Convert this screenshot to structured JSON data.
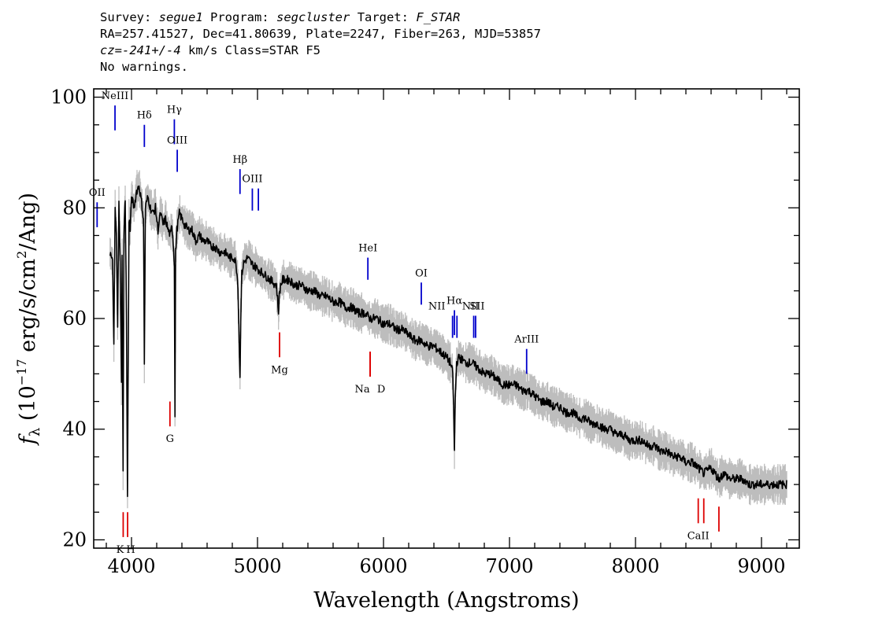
{
  "header": {
    "survey_label": "Survey:",
    "survey": "segue1",
    "program_label": "Program:",
    "program": "segcluster",
    "target_label": "Target:",
    "target": "F_STAR",
    "line2": "RA=257.41527, Dec=41.80639, Plate=2247, Fiber=263, MJD=53857",
    "cz_label": "cz=",
    "cz_value": "-241+/-4",
    "cz_units": "km/s",
    "class_text": "Class=STAR F5",
    "warnings": "No warnings."
  },
  "chart_data": {
    "type": "line",
    "title": "",
    "xlabel": "Wavelength (Angstroms)",
    "ylabel": "fλ (10⁻¹⁷ erg/s/cm²/Ang)",
    "xlim": [
      3700,
      9300
    ],
    "ylim": [
      18.5,
      101.5
    ],
    "x_ticks": [
      4000,
      5000,
      6000,
      7000,
      8000,
      9000
    ],
    "y_ticks": [
      20,
      40,
      60,
      80,
      100
    ],
    "grid": false,
    "series": [
      {
        "role": "flux",
        "color": "#000000",
        "x": [
          3830,
          3850,
          3860,
          3870,
          3880,
          3890,
          3900,
          3910,
          3920,
          3925,
          3933,
          3940,
          3950,
          3960,
          3968,
          3980,
          3990,
          4000,
          4020,
          4040,
          4060,
          4080,
          4095,
          4102,
          4110,
          4130,
          4150,
          4170,
          4190,
          4210,
          4230,
          4250,
          4270,
          4290,
          4310,
          4320,
          4330,
          4340,
          4345,
          4350,
          4360,
          4380,
          4400,
          4420,
          4450,
          4480,
          4510,
          4540,
          4570,
          4600,
          4630,
          4660,
          4700,
          4740,
          4780,
          4810,
          4830,
          4845,
          4855,
          4861,
          4867,
          4875,
          4890,
          4920,
          4950,
          5000,
          5050,
          5100,
          5150,
          5167,
          5172,
          5183,
          5200,
          5250,
          5300,
          5350,
          5400,
          5450,
          5500,
          5550,
          5600,
          5650,
          5700,
          5750,
          5800,
          5850,
          5893,
          5950,
          6000,
          6050,
          6100,
          6150,
          6200,
          6250,
          6300,
          6350,
          6400,
          6450,
          6500,
          6530,
          6550,
          6556,
          6563,
          6570,
          6580,
          6600,
          6650,
          6700,
          6750,
          6800,
          6850,
          6900,
          6950,
          7000,
          7050,
          7100,
          7150,
          7200,
          7250,
          7300,
          7350,
          7400,
          7450,
          7500,
          7550,
          7600,
          7650,
          7700,
          7750,
          7800,
          7850,
          7900,
          7950,
          8000,
          8050,
          8100,
          8150,
          8200,
          8250,
          8300,
          8350,
          8400,
          8450,
          8498,
          8542,
          8600,
          8662,
          8700,
          8750,
          8800,
          8850,
          8900,
          8950,
          9000,
          9050,
          9100,
          9150,
          9200
        ],
        "y": [
          72,
          70,
          55,
          80,
          75,
          58,
          82,
          70,
          48,
          72,
          32,
          75,
          82,
          60,
          28,
          78,
          76,
          82,
          80,
          83,
          84,
          81,
          78,
          52,
          80,
          82,
          80,
          79,
          80,
          76,
          79,
          77,
          78,
          76,
          75,
          77,
          74,
          70,
          42,
          72,
          76,
          79,
          78,
          77,
          76,
          76,
          74,
          75,
          74,
          74,
          73,
          73,
          72,
          72,
          71,
          71,
          70,
          66,
          55,
          49,
          60,
          68,
          70,
          71,
          70,
          69,
          68,
          67,
          66,
          61,
          64,
          66,
          67,
          67,
          66,
          66,
          65,
          65,
          64,
          64,
          63,
          63,
          62,
          62,
          61,
          61,
          60,
          60,
          59,
          59,
          58,
          58,
          57,
          56,
          56,
          55,
          55,
          54,
          53,
          52,
          50,
          44,
          36,
          46,
          52,
          53,
          52,
          52,
          51,
          50,
          50,
          49,
          48,
          48,
          48,
          47,
          47,
          46,
          45,
          45,
          44,
          44,
          43,
          43,
          42,
          42,
          41,
          41,
          40,
          40,
          39,
          39,
          38,
          38,
          38,
          37,
          37,
          36,
          36,
          35,
          35,
          34,
          34,
          33,
          32,
          33,
          31,
          32,
          31,
          31,
          31,
          30,
          30,
          30,
          30,
          30,
          30,
          30
        ]
      },
      {
        "role": "error-band",
        "color": "#bdbdbd",
        "spread": 2.5
      }
    ],
    "emission_lines": [
      {
        "label": "NeIII",
        "wl": 3869,
        "bottom": 94,
        "top": 98.5,
        "color": "#0000cc"
      },
      {
        "label": "Hδ",
        "wl": 4102,
        "bottom": 91,
        "top": 95,
        "color": "#0000cc"
      },
      {
        "label": "Hγ",
        "wl": 4340,
        "bottom": 91.5,
        "top": 96,
        "color": "#0000cc"
      },
      {
        "label": "OIII",
        "wl": 4363,
        "bottom": 86.5,
        "top": 90.5,
        "color": "#0000cc"
      },
      {
        "label": "Hβ",
        "wl": 4861,
        "bottom": 82.5,
        "top": 87,
        "color": "#0000cc"
      },
      {
        "label": "OIII",
        "wl": 4959,
        "bottom": 79.5,
        "top": 83.5,
        "color": "#0000cc"
      },
      {
        "label": "",
        "wl": 5007,
        "bottom": 79.5,
        "top": 83.5,
        "color": "#0000cc"
      },
      {
        "label": "OII",
        "wl": 3727,
        "bottom": 76.5,
        "top": 81,
        "color": "#0000cc"
      },
      {
        "label": "HeI",
        "wl": 5876,
        "bottom": 67,
        "top": 71,
        "color": "#0000cc"
      },
      {
        "label": "OI",
        "wl": 6300,
        "bottom": 62.5,
        "top": 66.5,
        "color": "#0000cc"
      },
      {
        "label": "NII",
        "wl": 6548,
        "bottom": 56.5,
        "top": 60.5,
        "color": "#0000cc"
      },
      {
        "label": "Hα",
        "wl": 6563,
        "bottom": 57,
        "top": 61.5,
        "color": "#0000cc"
      },
      {
        "label": "",
        "wl": 6583,
        "bottom": 56.5,
        "top": 60.5,
        "color": "#0000cc"
      },
      {
        "label": "NII",
        "wl": 6716,
        "bottom": 56.5,
        "top": 60.5,
        "color": "#0000cc"
      },
      {
        "label": "SII",
        "wl": 6731,
        "bottom": 56.5,
        "top": 60.5,
        "color": "#0000cc"
      },
      {
        "label": "ArIII",
        "wl": 7136,
        "bottom": 50,
        "top": 54.5,
        "color": "#0000cc"
      }
    ],
    "absorption_lines": [
      {
        "label": "K",
        "wl": 3934,
        "bottom": 20.5,
        "top": 25,
        "color": "#dd0000"
      },
      {
        "label": "H",
        "wl": 3969,
        "bottom": 20.5,
        "top": 25,
        "color": "#dd0000"
      },
      {
        "label": "G",
        "wl": 4305,
        "bottom": 40.5,
        "top": 45,
        "color": "#dd0000"
      },
      {
        "label": "Mg",
        "wl": 5175,
        "bottom": 53,
        "top": 57.5,
        "color": "#dd0000"
      },
      {
        "label": "Na",
        "wl": 5894,
        "bottom": 49.5,
        "top": 54,
        "color": "#dd0000"
      },
      {
        "label": "D",
        "wl": 5894,
        "bottom": 49.5,
        "top": 54,
        "color": "#dd0000"
      },
      {
        "label": "CaII",
        "wl": 8498,
        "bottom": 23,
        "top": 27.5,
        "color": "#dd0000"
      },
      {
        "label": "",
        "wl": 8542,
        "bottom": 23,
        "top": 27.5,
        "color": "#dd0000"
      },
      {
        "label": "",
        "wl": 8662,
        "bottom": 21.5,
        "top": 26,
        "color": "#dd0000"
      }
    ]
  }
}
